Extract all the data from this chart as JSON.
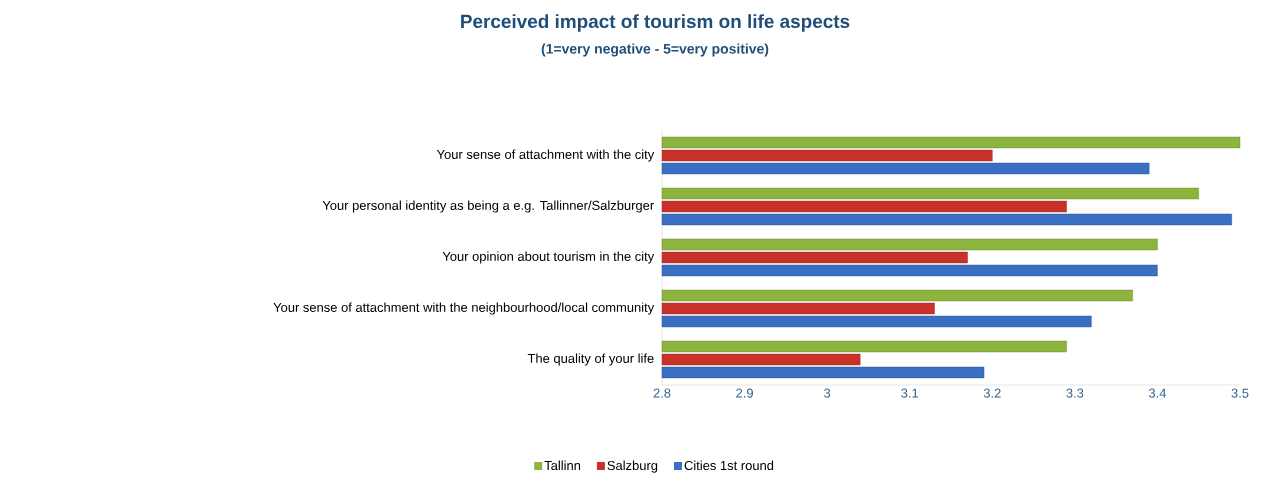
{
  "chart_data": {
    "type": "bar",
    "orientation": "horizontal",
    "title": "Perceived impact of tourism on life aspects",
    "subtitle": "(1=very negative - 5=very positive)",
    "categories": [
      "Your sense of attachment with the city",
      "Your personal identity as being a e.g. Tallinner/Salzburger",
      "Your opinion about tourism in the city",
      "Your sense of attachment with the neighbourhood/local community",
      "The quality of your life"
    ],
    "series": [
      {
        "name": "Tallinn",
        "color": "#8db43c",
        "values": [
          3.5,
          3.45,
          3.4,
          3.37,
          3.29
        ]
      },
      {
        "name": "Salzburg",
        "color": "#c8322a",
        "values": [
          3.2,
          3.29,
          3.17,
          3.13,
          3.04
        ]
      },
      {
        "name": "Cities 1st round",
        "color": "#3a6fc4",
        "values": [
          3.39,
          3.49,
          3.4,
          3.32,
          3.19
        ]
      }
    ],
    "xlim": [
      2.8,
      3.5
    ],
    "xticks": [
      2.8,
      2.9,
      3,
      3.1,
      3.2,
      3.3,
      3.4,
      3.5
    ],
    "legend": "bottom"
  }
}
